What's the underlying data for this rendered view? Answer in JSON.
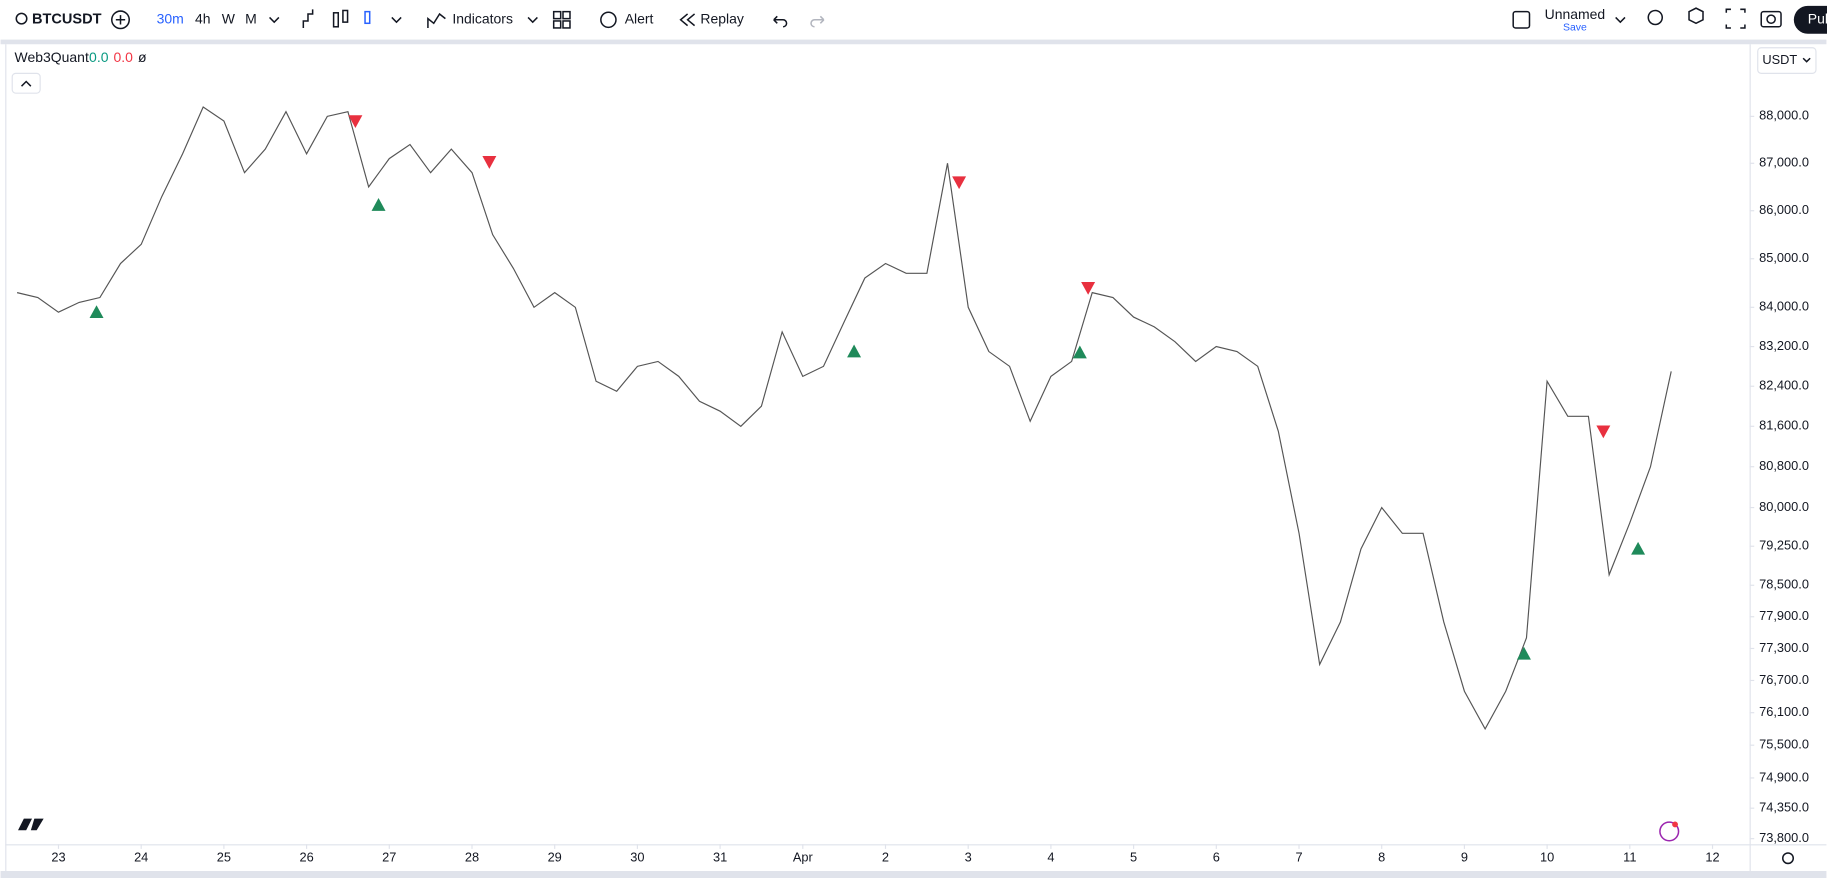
{
  "toolbar": {
    "symbol": "BTCUSDT",
    "intervals": [
      "30m",
      "4h",
      "W",
      "M"
    ],
    "indicators": "Indicators",
    "alert": "Alert",
    "replay": "Replay",
    "layout_name": "Unnamed",
    "save": "Save",
    "publish": "Pub"
  },
  "legend": {
    "indicator": "Web3Quant",
    "value_1": "0.0",
    "value_2": "0.0",
    "value_3": "ø"
  },
  "currency": "USDT",
  "chart_data": {
    "type": "line",
    "color": "#555555",
    "log_scale": true,
    "grid": false,
    "x": [
      -0.5,
      -0.25,
      0,
      0.25,
      0.5,
      0.75,
      1,
      1.25,
      1.5,
      1.75,
      2,
      2.25,
      2.5,
      2.75,
      3,
      3.25,
      3.5,
      3.75,
      4,
      4.25,
      4.5,
      4.75,
      5,
      5.25,
      5.5,
      5.75,
      6,
      6.25,
      6.5,
      6.75,
      7,
      7.25,
      7.5,
      7.75,
      8,
      8.25,
      8.5,
      8.75,
      9,
      9.25,
      9.5,
      9.75,
      10,
      10.25,
      10.5,
      10.75,
      11,
      11.25,
      11.5,
      11.75,
      12,
      12.25,
      12.5,
      12.75,
      13,
      13.25,
      13.5,
      13.75,
      14,
      14.25,
      14.5,
      14.75,
      15,
      15.25,
      15.5,
      15.75,
      16,
      16.25,
      16.5,
      16.75,
      17,
      17.25,
      17.5,
      17.75,
      18,
      18.25,
      18.5,
      18.75,
      19,
      19.25,
      19.5
    ],
    "values": [
      84300,
      84200,
      83900,
      84100,
      84200,
      84900,
      85300,
      86300,
      87200,
      88200,
      87900,
      86800,
      87300,
      88100,
      87200,
      88000,
      88100,
      86500,
      87100,
      87400,
      86800,
      87300,
      86800,
      85500,
      84800,
      84000,
      84300,
      84000,
      82500,
      82300,
      82800,
      82900,
      82600,
      82100,
      81900,
      81600,
      82000,
      83500,
      82600,
      82800,
      83700,
      84600,
      84900,
      84700,
      84700,
      87000,
      84000,
      83100,
      82800,
      81700,
      82600,
      82900,
      84300,
      84200,
      83800,
      83600,
      83300,
      82900,
      83200,
      83100,
      82800,
      81500,
      79500,
      77000,
      77800,
      79200,
      80000,
      79500,
      79500,
      77800,
      76500,
      75800,
      76500,
      77500,
      82500,
      81800,
      81800,
      78700,
      79700,
      80800,
      82700
    ],
    "signals": {
      "buy": {
        "color": "#1f8a5a",
        "x": [
          0.46,
          3.87,
          9.62,
          12.35,
          17.72,
          19.1
        ],
        "values": [
          83900,
          86120,
          83100,
          83080,
          77200,
          79200
        ]
      },
      "sell": {
        "color": "#e8303f",
        "x": [
          3.59,
          5.21,
          10.89,
          12.45,
          18.68
        ],
        "values": [
          87900,
          87030,
          86600,
          84400,
          81500
        ]
      }
    },
    "xlim": [
      -0.63,
      20.42
    ],
    "xticks": [
      {
        "value": 0,
        "label": "23"
      },
      {
        "value": 1,
        "label": "24"
      },
      {
        "value": 2,
        "label": "25"
      },
      {
        "value": 3,
        "label": "26"
      },
      {
        "value": 4,
        "label": "27"
      },
      {
        "value": 5,
        "label": "28"
      },
      {
        "value": 6,
        "label": "29"
      },
      {
        "value": 7,
        "label": "30"
      },
      {
        "value": 8,
        "label": "31"
      },
      {
        "value": 9,
        "label": "Apr"
      },
      {
        "value": 10,
        "label": "2"
      },
      {
        "value": 11,
        "label": "3"
      },
      {
        "value": 12,
        "label": "4"
      },
      {
        "value": 13,
        "label": "5"
      },
      {
        "value": 14,
        "label": "6"
      },
      {
        "value": 15,
        "label": "7"
      },
      {
        "value": 16,
        "label": "8"
      },
      {
        "value": 17,
        "label": "9"
      },
      {
        "value": 18,
        "label": "10"
      },
      {
        "value": 19,
        "label": "11"
      },
      {
        "value": 20,
        "label": "12"
      }
    ],
    "ylim": [
      73700,
      89560
    ],
    "yticks": [
      {
        "value": 88000,
        "label": "88,000.0"
      },
      {
        "value": 87000,
        "label": "87,000.0"
      },
      {
        "value": 86000,
        "label": "86,000.0"
      },
      {
        "value": 85000,
        "label": "85,000.0"
      },
      {
        "value": 84000,
        "label": "84,000.0"
      },
      {
        "value": 83200,
        "label": "83,200.0"
      },
      {
        "value": 82400,
        "label": "82,400.0"
      },
      {
        "value": 81600,
        "label": "81,600.0"
      },
      {
        "value": 80800,
        "label": "80,800.0"
      },
      {
        "value": 80000,
        "label": "80,000.0"
      },
      {
        "value": 79250,
        "label": "79,250.0"
      },
      {
        "value": 78500,
        "label": "78,500.0"
      },
      {
        "value": 77900,
        "label": "77,900.0"
      },
      {
        "value": 77300,
        "label": "77,300.0"
      },
      {
        "value": 76700,
        "label": "76,700.0"
      },
      {
        "value": 76100,
        "label": "76,100.0"
      },
      {
        "value": 75500,
        "label": "75,500.0"
      },
      {
        "value": 74900,
        "label": "74,900.0"
      },
      {
        "value": 74350,
        "label": "74,350.0"
      },
      {
        "value": 73800,
        "label": "73,800.0"
      }
    ]
  }
}
